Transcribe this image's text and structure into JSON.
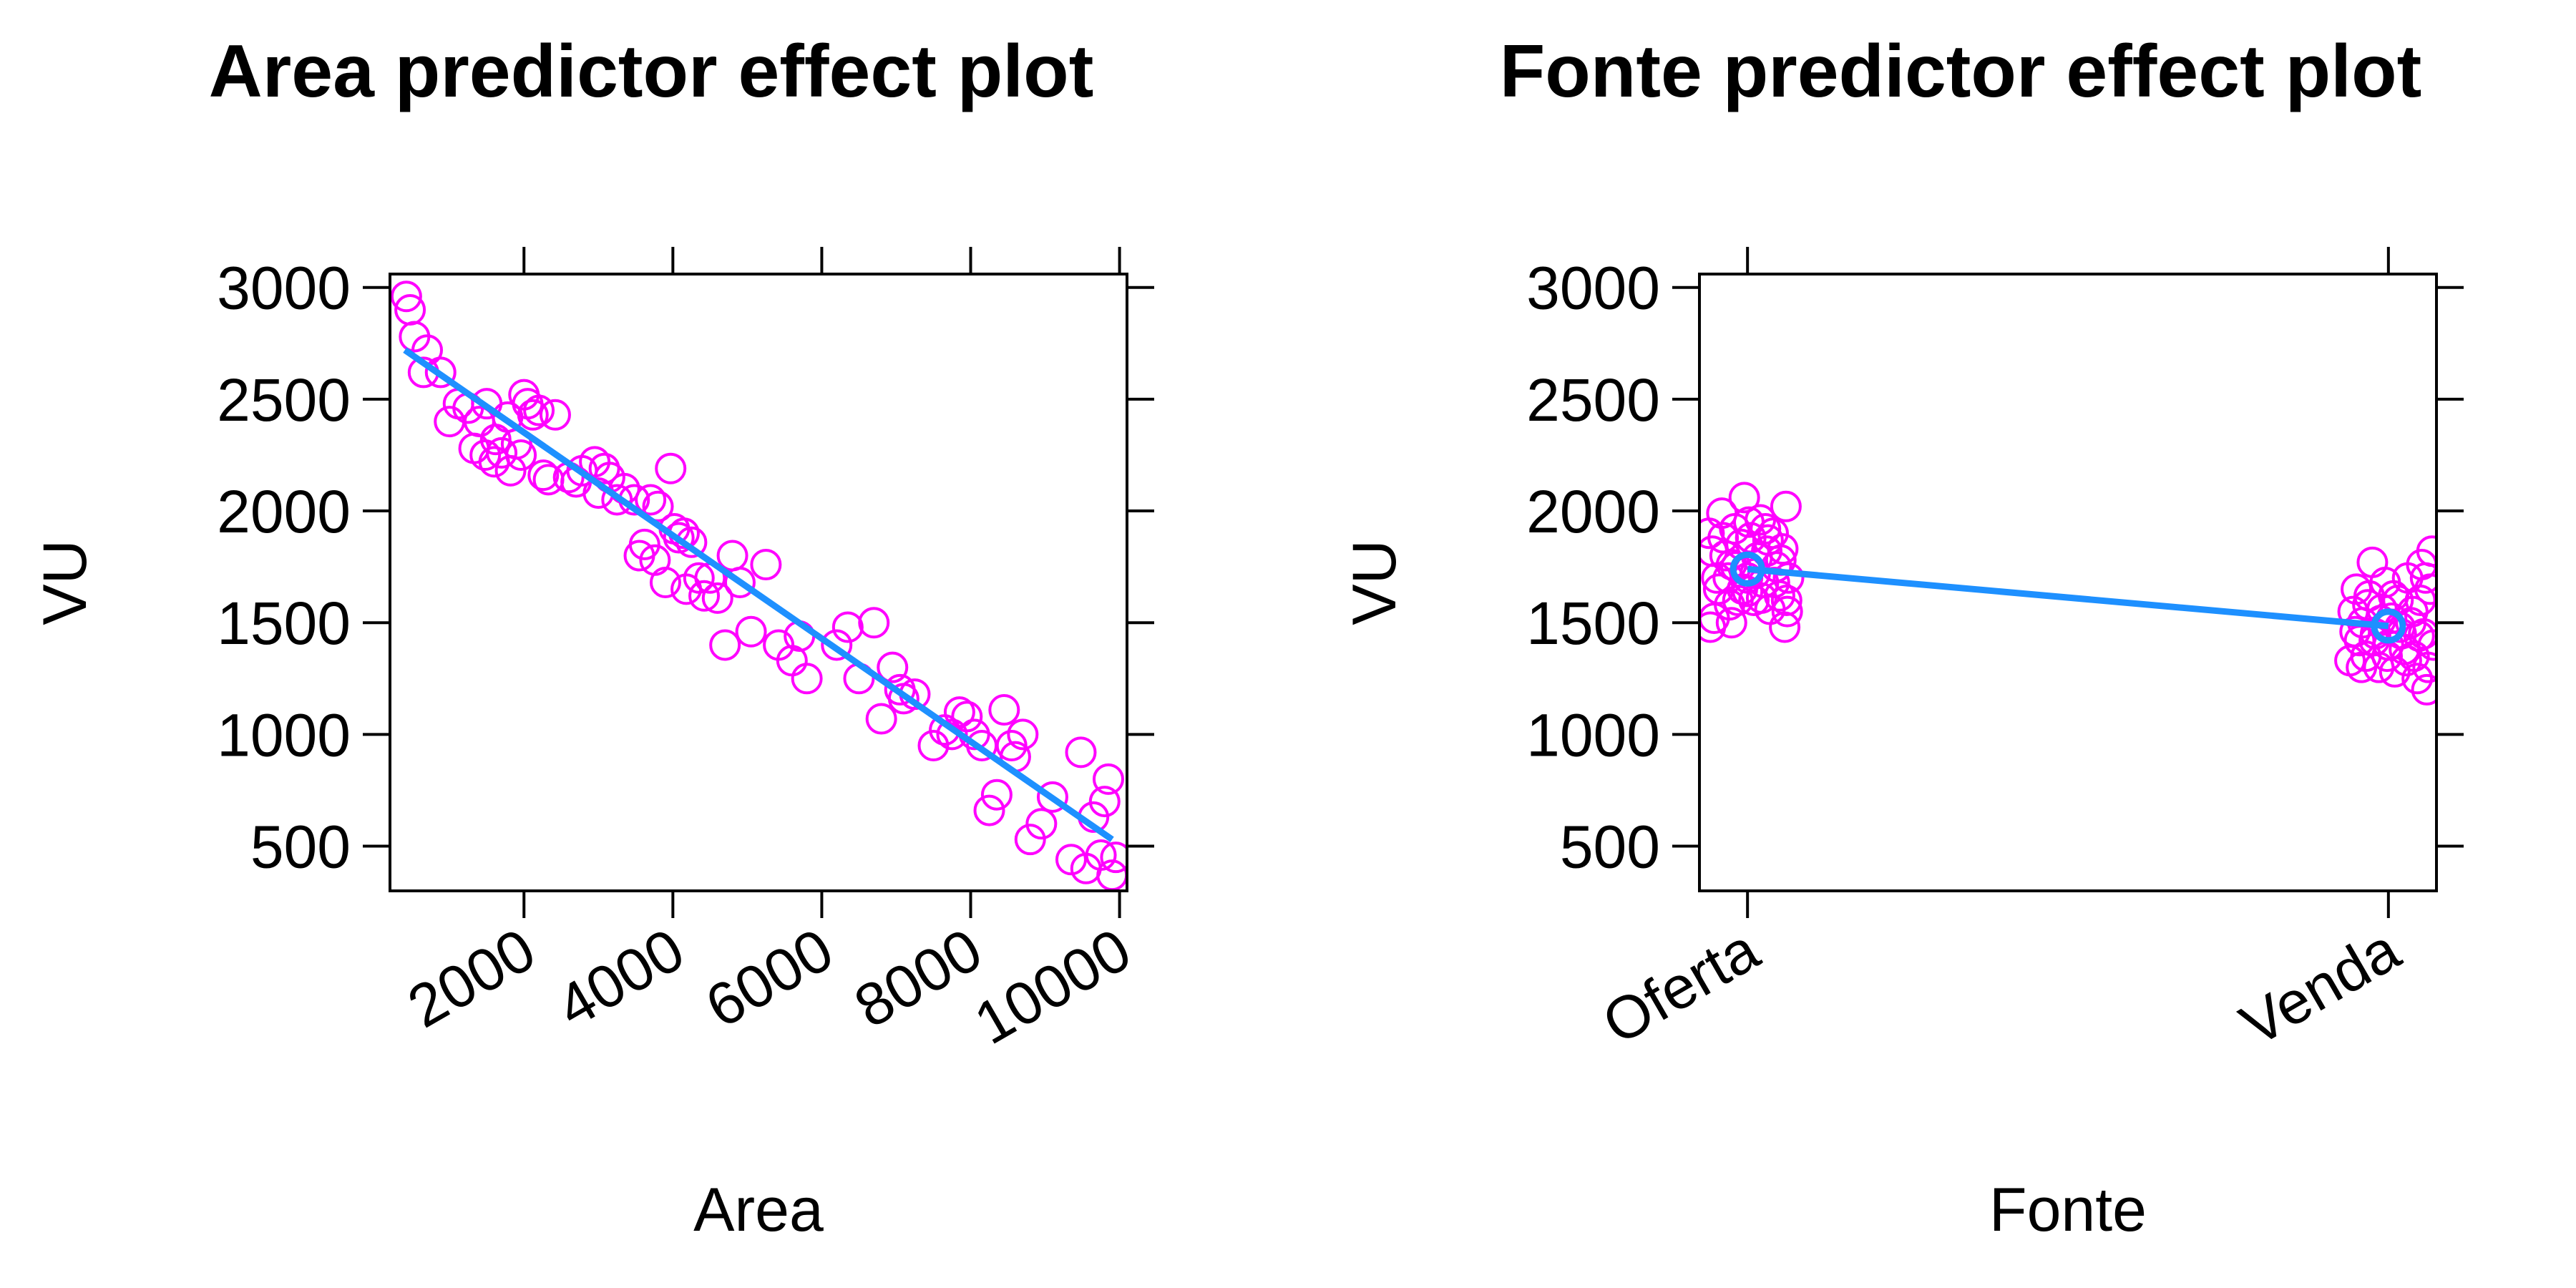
{
  "chart_data": [
    {
      "type": "scatter",
      "title": "Area predictor effect plot",
      "xlabel": "Area",
      "ylabel": "VU",
      "xlim": [
        200,
        10100
      ],
      "ylim": [
        300,
        3060
      ],
      "x_ticks": [
        "2000",
        "4000",
        "6000",
        "8000",
        "10000"
      ],
      "x_tick_values": [
        2000,
        4000,
        6000,
        8000,
        10000
      ],
      "y_ticks": [
        "500",
        "1000",
        "1500",
        "2000",
        "2500",
        "3000"
      ],
      "y_tick_values": [
        500,
        1000,
        1500,
        2000,
        2500,
        3000
      ],
      "marker_color": "#ff00ff",
      "line_color": "#1e90ff",
      "fit_line": {
        "x": [
          400,
          9900
        ],
        "y": [
          2720,
          530
        ]
      },
      "points": {
        "x": [
          420,
          470,
          530,
          650,
          700,
          880,
          1000,
          1120,
          1250,
          1330,
          1400,
          1480,
          1500,
          1600,
          1620,
          1700,
          1780,
          1820,
          1900,
          1960,
          2000,
          2050,
          2120,
          2200,
          2260,
          2330,
          2420,
          2600,
          2700,
          2780,
          2950,
          3000,
          3080,
          3150,
          3250,
          3350,
          3480,
          3550,
          3620,
          3700,
          3760,
          3800,
          3900,
          3970,
          4020,
          4080,
          4150,
          4180,
          4250,
          4350,
          4420,
          4500,
          4600,
          4700,
          4800,
          4900,
          5050,
          5250,
          5420,
          5600,
          5700,
          5800,
          6200,
          6350,
          6500,
          6700,
          6800,
          6950,
          7050,
          7100,
          7250,
          7500,
          7650,
          7750,
          7850,
          7950,
          8050,
          8150,
          8250,
          8350,
          8450,
          8550,
          8600,
          8700,
          8800,
          8950,
          9100,
          9350,
          9480,
          9550,
          9650,
          9750,
          9800,
          9850,
          9900,
          9950
        ],
        "y": [
          2960,
          2900,
          2780,
          2620,
          2720,
          2620,
          2400,
          2480,
          2460,
          2280,
          2400,
          2250,
          2480,
          2220,
          2320,
          2260,
          2420,
          2180,
          2300,
          2250,
          2520,
          2480,
          2430,
          2450,
          2160,
          2140,
          2430,
          2150,
          2130,
          2180,
          2220,
          2080,
          2190,
          2150,
          2050,
          2100,
          2050,
          1800,
          1850,
          2050,
          1780,
          2020,
          1680,
          2190,
          1920,
          1880,
          1900,
          1650,
          1860,
          1700,
          1620,
          1700,
          1610,
          1400,
          1800,
          1680,
          1460,
          1760,
          1400,
          1330,
          1440,
          1250,
          1400,
          1480,
          1250,
          1500,
          1070,
          1300,
          1200,
          1160,
          1180,
          950,
          1020,
          1000,
          1100,
          1080,
          1000,
          950,
          660,
          730,
          1110,
          950,
          900,
          1000,
          530,
          600,
          720,
          440,
          920,
          400,
          630,
          460,
          700,
          800,
          370,
          450
        ]
      }
    },
    {
      "type": "scatter",
      "title": "Fonte predictor effect plot",
      "xlabel": "Fonte",
      "ylabel": "VU",
      "categories": [
        "Oferta",
        "Venda"
      ],
      "xlim": [
        -0.075,
        1.075
      ],
      "ylim": [
        300,
        3060
      ],
      "y_ticks": [
        "500",
        "1000",
        "1500",
        "2000",
        "2500",
        "3000"
      ],
      "y_tick_values": [
        500,
        1000,
        1500,
        2000,
        2500,
        3000
      ],
      "marker_color": "#ff00ff",
      "line_color": "#1e90ff",
      "effect": {
        "x": [
          0,
          1
        ],
        "y": [
          1740,
          1485
        ]
      },
      "points": {
        "x": [
          -0.06,
          -0.052,
          -0.045,
          -0.04,
          -0.035,
          -0.03,
          -0.025,
          -0.02,
          -0.015,
          -0.01,
          -0.005,
          0.0,
          0.005,
          0.01,
          0.015,
          0.02,
          0.025,
          0.03,
          0.035,
          0.04,
          0.045,
          0.05,
          0.055,
          0.06,
          -0.058,
          -0.048,
          -0.038,
          -0.028,
          -0.018,
          -0.008,
          0.002,
          0.012,
          0.022,
          0.032,
          0.042,
          0.052,
          0.062,
          -0.055,
          0.058,
          0.0,
          -0.025,
          0.028,
          0.064,
          0.061,
          0.94,
          0.945,
          0.95,
          0.955,
          0.96,
          0.965,
          0.97,
          0.975,
          0.98,
          0.985,
          0.99,
          0.995,
          1.0,
          1.005,
          1.01,
          1.015,
          1.02,
          1.025,
          1.03,
          1.035,
          1.04,
          1.045,
          1.05,
          1.055,
          1.06,
          1.065,
          1.07,
          0.948,
          0.958,
          0.968,
          0.978,
          0.988,
          0.998,
          1.008,
          1.018,
          1.028,
          1.038,
          1.048,
          1.058,
          1.068,
          1.062,
          1.052
        ],
        "y": [
          1900,
          1520,
          1650,
          1990,
          1800,
          1700,
          1760,
          1920,
          1600,
          1850,
          2060,
          1700,
          1880,
          1600,
          1790,
          1960,
          1680,
          1820,
          1560,
          1900,
          1750,
          1620,
          1830,
          2020,
          1480,
          1700,
          1880,
          1580,
          1750,
          1650,
          1950,
          1720,
          1610,
          1870,
          1680,
          1780,
          1550,
          1820,
          1480,
          1640,
          1500,
          1920,
          1700,
          1600,
          1330,
          1550,
          1650,
          1420,
          1500,
          1350,
          1620,
          1770,
          1450,
          1300,
          1560,
          1680,
          1400,
          1520,
          1280,
          1600,
          1450,
          1380,
          1700,
          1500,
          1350,
          1250,
          1600,
          1450,
          1200,
          1650,
          1400,
          1460,
          1300,
          1580,
          1420,
          1510,
          1350,
          1620,
          1480,
          1330,
          1550,
          1440,
          1700,
          1820,
          1300,
          1760
        ]
      }
    }
  ]
}
